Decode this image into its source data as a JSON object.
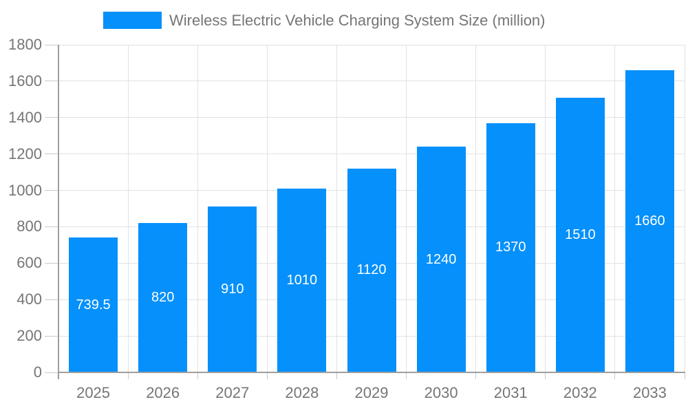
{
  "chart_data": {
    "type": "bar",
    "title": "Wireless Electric Vehicle Charging System Size (million)",
    "categories": [
      "2025",
      "2026",
      "2027",
      "2028",
      "2029",
      "2030",
      "2031",
      "2032",
      "2033"
    ],
    "values": [
      739.5,
      820,
      910,
      1010,
      1120,
      1240,
      1370,
      1510,
      1660
    ],
    "series": [
      {
        "name": "Wireless Electric Vehicle Charging System Size (million)",
        "values": [
          739.5,
          820,
          910,
          1010,
          1120,
          1240,
          1370,
          1510,
          1660
        ]
      }
    ],
    "xlabel": "",
    "ylabel": "",
    "ylim": [
      0,
      1800
    ],
    "yticks": [
      0,
      200,
      400,
      600,
      800,
      1000,
      1200,
      1400,
      1600,
      1800
    ],
    "grid": true,
    "legend_position": "top",
    "value_labels_visible": true,
    "value_label_position": "inside-middle"
  },
  "legend": {
    "label": "Wireless Electric Vehicle Charging System Size (million)"
  },
  "colors": {
    "bar": "#0590FB",
    "axis_text": "#757575",
    "value_label": "#ffffff",
    "grid_line": "#e2e2e2",
    "tick_line": "#c9c9c9",
    "axis_line": "#9e9e9e",
    "background": "#ffffff"
  }
}
